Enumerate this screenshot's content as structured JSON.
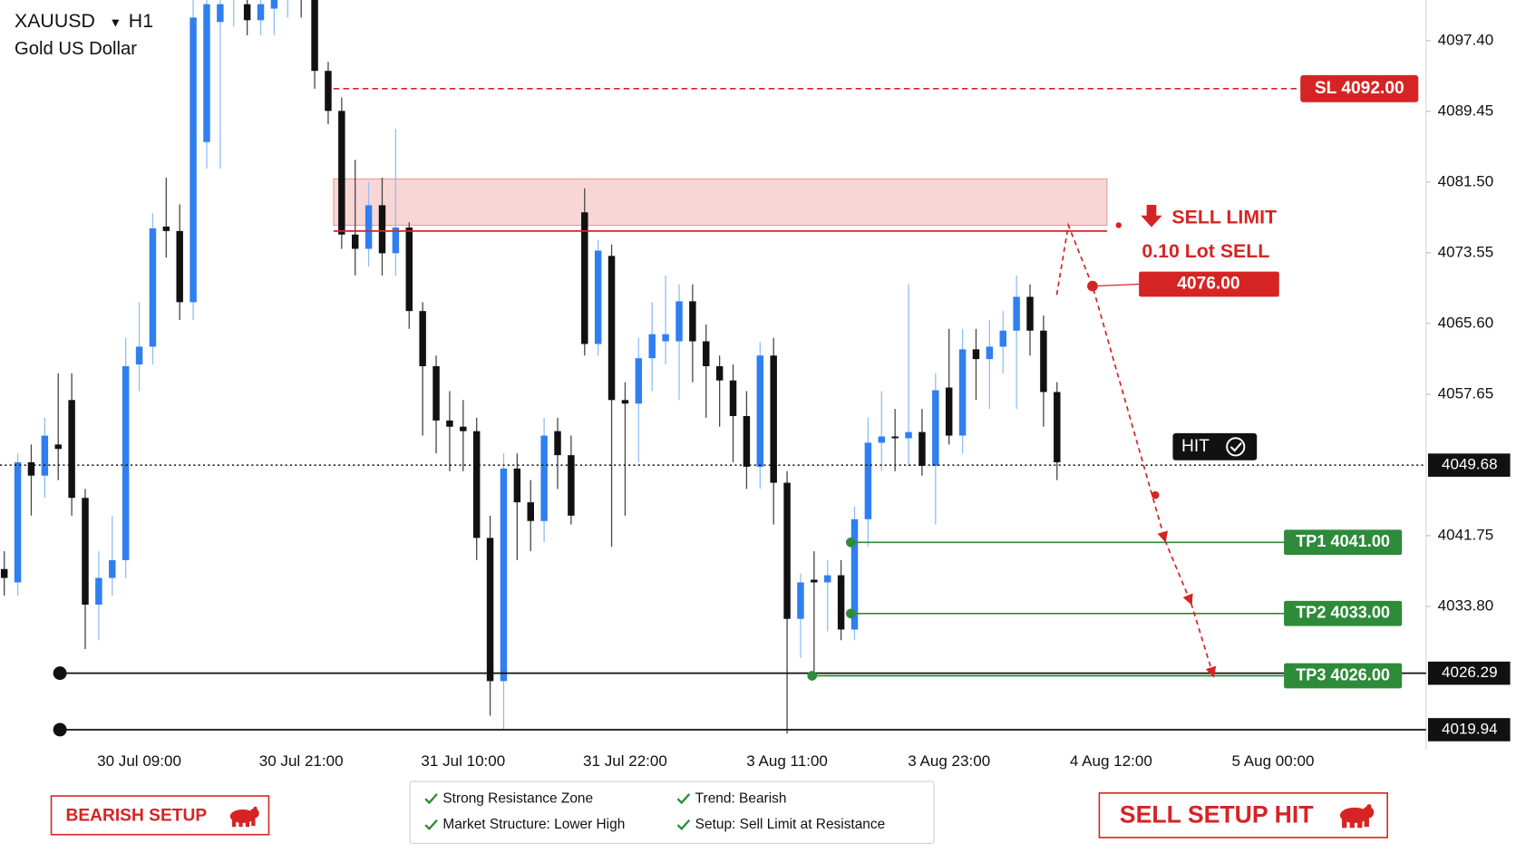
{
  "chart_data": {
    "type": "candlestick",
    "symbol": "XAUUSD",
    "timeframe": "H1",
    "subtitle": "Gold US Dollar",
    "categories": [
      null,
      null,
      null,
      null,
      null,
      null,
      null,
      null,
      null,
      null,
      "30 Jul 09:00",
      null,
      null,
      null,
      null,
      null,
      null,
      null,
      null,
      null,
      null,
      null,
      "30 Jul 21:00",
      null,
      null,
      null,
      null,
      null,
      null,
      null,
      null,
      null,
      null,
      null,
      "31 Jul 10:00",
      null,
      null,
      null,
      null,
      null,
      null,
      null,
      null,
      null,
      null,
      null,
      "31 Jul 22:00",
      null,
      null,
      null,
      null,
      null,
      null,
      null,
      null,
      null,
      null,
      null,
      "3 Aug 11:00",
      null,
      null,
      null,
      null,
      null,
      null,
      null,
      null,
      null,
      null,
      null,
      "3 Aug 23:00",
      null,
      null,
      null,
      null,
      null,
      null,
      null,
      null,
      null,
      null,
      null,
      "4 Aug 12:00",
      null,
      null,
      null,
      null,
      null,
      null,
      null,
      null,
      null,
      null,
      null,
      "5 Aug 00:00",
      null,
      null,
      null,
      null,
      null,
      null,
      null,
      null,
      null,
      null
    ],
    "open": [
      4038,
      4036.5,
      4050,
      4048.5,
      4052,
      4057,
      4046,
      4034,
      4037,
      4039,
      4061,
      4063,
      4076.5,
      4076,
      4068,
      4086,
      4099.5,
      4102,
      4101.5,
      4099.7,
      4101,
      4102.5,
      4103,
      4102,
      4094,
      4089.5,
      4075.6,
      4074,
      4078.9,
      4073.5,
      4076.4,
      4067,
      4060.8,
      4054.7,
      4054,
      4053.5,
      4041.5,
      4025.4,
      4049.3,
      4045.5,
      4043.4,
      4053.5,
      4050.8,
      4078.1,
      4063.3,
      4073.2,
      4057,
      4056.6,
      4061.7,
      4063.6,
      4063.6,
      4068.1,
      4063.6,
      4060.8,
      4059.2,
      4055.2,
      4049.5,
      4062,
      4047.7,
      4032.4,
      4036.8,
      4036.5,
      4037.3,
      4031.2,
      4043.6,
      4052.2,
      4052.9,
      4052.7,
      4053.4,
      4049.6,
      4058.4,
      4053,
      4062.7,
      4061.6,
      4063,
      4064.8,
      4068.6,
      4064.8,
      4057.9,
      null,
      null,
      null,
      null,
      null,
      null,
      null,
      null,
      null,
      null,
      null,
      null,
      null,
      null,
      null,
      null,
      null,
      null,
      null,
      null,
      null,
      null,
      null,
      null,
      null,
      null
    ],
    "high": [
      4040,
      4051,
      4052,
      4055,
      4060,
      4060,
      4047,
      4040,
      4044,
      4064,
      4068,
      4078,
      4082,
      4079,
      4103,
      4104,
      4103,
      4106,
      4104,
      4104,
      4104,
      4105,
      4105,
      4103,
      4095,
      4091,
      4084,
      4081.5,
      4082,
      4087.5,
      4077,
      4068,
      4062,
      4058,
      4057,
      4055,
      4044,
      4051,
      4051,
      4048,
      4055,
      4055,
      4053,
      4080.8,
      4075,
      4074.5,
      4059,
      4064,
      4068,
      4071,
      4070,
      4070,
      4065.5,
      4062,
      4061,
      4058,
      4063.5,
      4064,
      4049,
      4037.5,
      4040,
      4039,
      4039,
      4045,
      4055,
      4058,
      4056,
      4070,
      4056,
      4060,
      4065,
      4065,
      4065,
      4066,
      4067,
      4071,
      4070,
      4066.5,
      4059,
      null,
      null,
      null,
      null,
      null,
      null,
      null,
      null,
      null,
      null,
      null,
      null,
      null,
      null,
      null,
      null,
      null,
      null,
      null,
      null,
      null,
      null,
      null,
      null,
      null,
      null
    ],
    "low": [
      4035,
      4035,
      4044,
      4046,
      4048,
      4044,
      4029,
      4030,
      4035,
      4037,
      4058,
      4061,
      4073,
      4066,
      4066,
      4083,
      4083,
      4099,
      4098,
      4098,
      4098,
      4100,
      4100,
      4092,
      4088,
      4074,
      4071,
      4072,
      4071,
      4071,
      4065,
      4053,
      4051,
      4049,
      4049,
      4039,
      4021.5,
      4020,
      4039,
      4040,
      4041,
      4047,
      4043,
      4062,
      4062,
      4040.5,
      4044,
      4050,
      4058,
      4061,
      4057,
      4059,
      4055,
      4054,
      4050,
      4047,
      4047,
      4043,
      4019.5,
      4028,
      4026.5,
      4031,
      4030,
      4030,
      4040.5,
      4049,
      4049,
      4049.5,
      4048.5,
      4043,
      4052,
      4051,
      4057,
      4056,
      4060,
      4056,
      4062,
      4054,
      4048,
      null,
      null,
      null,
      null,
      null,
      null,
      null,
      null,
      null,
      null,
      null,
      null,
      null,
      null,
      null,
      null,
      null,
      null,
      null,
      null,
      null,
      null,
      null,
      null,
      null,
      null
    ],
    "close": [
      4037,
      4050,
      4048.5,
      4053,
      4051.5,
      4046,
      4034,
      4037,
      4039,
      4060.8,
      4063,
      4076.3,
      4076,
      4068,
      4100,
      4101.5,
      4101.5,
      4104,
      4099.7,
      4101.5,
      4102.5,
      4103,
      4102.5,
      4094,
      4089.5,
      4075.6,
      4074,
      4078.9,
      4073.5,
      4076.4,
      4067,
      4060.8,
      4054.7,
      4054,
      4053.5,
      4041.5,
      4025.4,
      4049.3,
      4045.5,
      4043.4,
      4053,
      4050.8,
      4044,
      4063.3,
      4073.8,
      4057,
      4056.6,
      4061.7,
      4064.4,
      4064.4,
      4068.1,
      4063.6,
      4060.8,
      4059.2,
      4055.2,
      4049.5,
      4062,
      4047.7,
      4032.4,
      4036.5,
      4036.5,
      4037.3,
      4031.2,
      4043.6,
      4052.2,
      4052.9,
      4052.7,
      4053.4,
      4049.6,
      4058.1,
      4053,
      4062.7,
      4061.6,
      4063,
      4064.8,
      4068.6,
      4064.8,
      4057.9,
      4050,
      null,
      null,
      null,
      null,
      null,
      null,
      null,
      null,
      null,
      null,
      null,
      null,
      null,
      null,
      null,
      null,
      null,
      null,
      null,
      null,
      null,
      null,
      null,
      null,
      null,
      null
    ],
    "up_color": "#2f7ff0",
    "down_color": "#111111",
    "ylim": [
      4017.71,
      4101.97
    ],
    "yticks": [
      {
        "value": 4097.4,
        "label": "4097.40"
      },
      {
        "value": 4089.45,
        "label": "4089.45"
      },
      {
        "value": 4081.5,
        "label": "4081.50"
      },
      {
        "value": 4073.55,
        "label": "4073.55"
      },
      {
        "value": 4065.6,
        "label": "4065.60"
      },
      {
        "value": 4057.65,
        "label": "4057.65"
      },
      {
        "value": 4041.75,
        "label": "4041.75"
      },
      {
        "value": 4033.8,
        "label": "4033.80"
      }
    ],
    "current_price": {
      "value": 4049.68,
      "label": "4049.68"
    },
    "levels": [
      {
        "value": 4026.29,
        "label": "4026.29"
      },
      {
        "value": 4019.94,
        "label": "4019.94"
      }
    ],
    "resistance_zone": [
      4076.64,
      4081.86
    ],
    "stop_loss": {
      "value": 4092.0,
      "label": "SL 4092.00"
    },
    "sell_limit": {
      "title": "SELL LIMIT",
      "lots": "0.10 Lot SELL",
      "entry": {
        "value": 4076.0,
        "label": "4076.00"
      }
    },
    "take_profits": [
      {
        "value": 4041.0,
        "label": "TP1 4041.00"
      },
      {
        "value": 4033.0,
        "label": "TP2 4033.00"
      },
      {
        "value": 4026.0,
        "label": "TP3 4026.00"
      }
    ],
    "hit_label": "HIT"
  },
  "badges": {
    "left": "BEARISH SETUP",
    "right": "SELL SETUP HIT"
  },
  "checklist": [
    "Strong Resistance Zone",
    "Trend: Bearish",
    "Market Structure: Lower High",
    "Setup: Sell Limit at Resistance"
  ]
}
